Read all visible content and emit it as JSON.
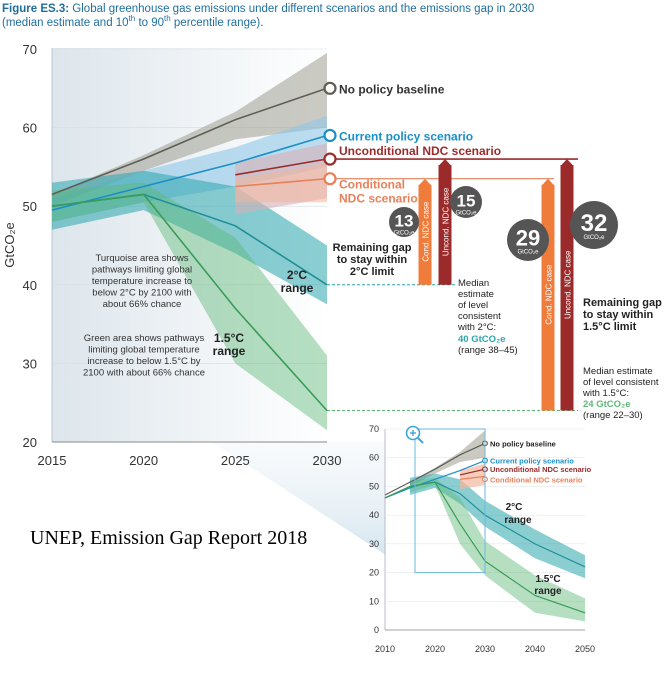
{
  "figure": {
    "label": "Figure ES.3:",
    "title_line1_text": " Global greenhouse gas emissions under different scenarios and the emissions gap in 2030",
    "title_line2_pre": "(median estimate and 10",
    "title_sup1": "th",
    "title_line2_mid": " to 90",
    "title_sup2": "th",
    "title_line2_post": " percentile range)."
  },
  "caption": "UNEP, Emission Gap Report 2018",
  "colors": {
    "baseline": "#5e5e55",
    "current": "#1b8fc7",
    "unconditional": "#9b2b2b",
    "conditional": "#e8805a",
    "two_deg": "#2aa6ad",
    "one_five": "#5db877",
    "gap_bar": "#f07c3c",
    "circle": "#555555"
  },
  "chart_data": [
    {
      "type": "line",
      "ylabel": "GtCO₂e",
      "ylim": [
        20,
        70
      ],
      "yticks": [
        "70",
        "60",
        "50",
        "40",
        "30",
        "20"
      ],
      "xlim": [
        2015,
        2030
      ],
      "xticks": [
        "2015",
        "2020",
        "2025",
        "2030"
      ],
      "series": [
        {
          "name": "No policy baseline",
          "x": [
            2015,
            2020,
            2025,
            2030
          ],
          "values": [
            51.5,
            56,
            61,
            65
          ]
        },
        {
          "name": "Current policy scenario",
          "x": [
            2015,
            2020,
            2025,
            2030
          ],
          "values": [
            49.5,
            52.5,
            55.5,
            59
          ]
        },
        {
          "name": "Unconditional NDC scenario",
          "x": [
            2025,
            2030
          ],
          "values": [
            54,
            56
          ]
        },
        {
          "name": "Conditional NDC scenario",
          "x": [
            2025,
            2030
          ],
          "values": [
            52.5,
            53.5
          ]
        },
        {
          "name": "2°C range",
          "x": [
            2015,
            2020,
            2025,
            2030
          ],
          "values": [
            50,
            51.5,
            47.5,
            40
          ]
        },
        {
          "name": "1.5°C range",
          "x": [
            2015,
            2020,
            2025,
            2030
          ],
          "values": [
            50,
            51.5,
            37,
            24
          ]
        }
      ],
      "series_labels": {
        "baseline": "No policy baseline",
        "current": "Current policy scenario",
        "unconditional": "Unconditional NDC scenario",
        "conditional_line1": "Conditional",
        "conditional_line2": "NDC scenario"
      },
      "range_labels": {
        "two_line1": "2°C",
        "two_line2": "range",
        "one_five_line1": "1.5°C",
        "one_five_line2": "range"
      },
      "notes": {
        "turquoise": [
          "Turquoise area shows",
          "pathways limiting global",
          "temperature increase to",
          "below 2°C by 2100 with",
          "about 66% chance"
        ],
        "green": [
          "Green area shows pathways",
          "limiting global temperature",
          "increase to below 1.5°C by",
          "2100 with about 66% chance"
        ]
      },
      "gaps": {
        "cond_2c": {
          "value": "13",
          "unit": "GtCO₂e",
          "bar_label": "Cond. NDC case"
        },
        "uncond_2c": {
          "value": "15",
          "unit": "GtCO₂e",
          "bar_label": "Uncond. NDC case"
        },
        "cond_15c": {
          "value": "29",
          "unit": "GtCO₂e",
          "bar_label": "Cond. NDC case"
        },
        "uncond_15c": {
          "value": "32",
          "unit": "GtCO₂e",
          "bar_label": "Uncond. NDC case"
        }
      },
      "annotations": {
        "gap_2c": [
          "Remaining gap",
          "to stay within",
          "2°C limit"
        ],
        "gap_15c": [
          "Remaining gap",
          "to stay within",
          "1.5°C limit"
        ],
        "median_2c": [
          "Median",
          "estimate",
          "of level",
          "consistent",
          "with 2°C:"
        ],
        "median_2c_value": "40 GtCO₂e",
        "median_2c_range": "(range 38–45)",
        "median_15c": [
          "Median estimate",
          "of level consistent",
          "with 1.5°C:"
        ],
        "median_15c_value": "24 GtCO₂e",
        "median_15c_range": "(range 22–30)"
      }
    },
    {
      "type": "line",
      "ylim": [
        0,
        70
      ],
      "yticks": [
        "70",
        "60",
        "50",
        "40",
        "30",
        "20",
        "10",
        "0"
      ],
      "xlim": [
        2010,
        2050
      ],
      "xticks": [
        "2010",
        "2020",
        "2030",
        "2040",
        "2050"
      ],
      "series": [
        {
          "name": "No policy baseline",
          "x": [
            2010,
            2015,
            2020,
            2025,
            2030
          ],
          "values": [
            47,
            51.5,
            56,
            61,
            65
          ]
        },
        {
          "name": "Current policy scenario",
          "x": [
            2010,
            2015,
            2020,
            2025,
            2030
          ],
          "values": [
            46,
            49.5,
            52.5,
            55.5,
            59
          ]
        },
        {
          "name": "Unconditional NDC scenario",
          "x": [
            2025,
            2030
          ],
          "values": [
            54,
            56
          ]
        },
        {
          "name": "Conditional NDC scenario",
          "x": [
            2025,
            2030
          ],
          "values": [
            52.5,
            53.5
          ]
        },
        {
          "name": "2°C range",
          "x": [
            2010,
            2015,
            2020,
            2025,
            2030,
            2040,
            2050
          ],
          "values": [
            46,
            50,
            51.5,
            47.5,
            40,
            30,
            22
          ]
        },
        {
          "name": "1.5°C range",
          "x": [
            2010,
            2015,
            2020,
            2025,
            2030,
            2040,
            2050
          ],
          "values": [
            46,
            50,
            51.5,
            37,
            24,
            12,
            6
          ]
        }
      ],
      "range_labels": {
        "two_line1": "2°C",
        "two_line2": "range",
        "one_five_line1": "1.5°C",
        "one_five_line2": "range"
      }
    }
  ]
}
